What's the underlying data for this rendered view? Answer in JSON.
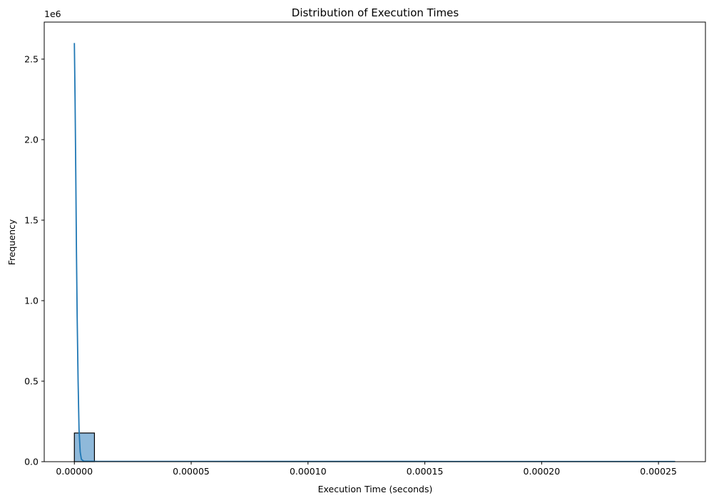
{
  "chart_data": {
    "type": "bar",
    "title": "Distribution of Execution Times",
    "xlabel": "Execution Time (seconds)",
    "ylabel": "Frequency",
    "y_offset_label": "1e6",
    "xlim": [
      -1.29e-05,
      0.0002701
    ],
    "ylim": [
      0,
      2730000
    ],
    "x_ticks": [
      0,
      5e-05,
      0.0001,
      0.00015,
      0.0002,
      0.00025
    ],
    "x_tick_labels": [
      "0.00000",
      "0.00005",
      "0.00010",
      "0.00015",
      "0.00020",
      "0.00025"
    ],
    "y_ticks": [
      0,
      500000,
      1000000,
      1500000,
      2000000,
      2500000
    ],
    "y_tick_labels": [
      "0.0",
      "0.5",
      "1.0",
      "1.5",
      "2.0",
      "2.5"
    ],
    "grid": false,
    "histogram": {
      "bins": [
        {
          "x0": 0.0,
          "x1": 8.6e-06,
          "value": 178000
        },
        {
          "x0": 8.6e-06,
          "x1": 0.0002571,
          "value": 1500
        }
      ],
      "fill_color": "#8fb9da",
      "edge_color": "#000000"
    },
    "kde": {
      "color": "#1f77b4",
      "x": [
        0.0,
        3e-07,
        6e-07,
        9e-07,
        1.2e-06,
        1.6e-06,
        2e-06,
        2.5e-06,
        3e-06,
        4e-06,
        1e-05,
        5e-05,
        0.0001,
        0.00015,
        0.0002,
        0.000257
      ],
      "y": [
        2600000,
        2250000,
        1800000,
        1300000,
        900000,
        500000,
        200000,
        60000,
        15000,
        3000,
        1800,
        1500,
        1400,
        1300,
        1200,
        1000
      ]
    }
  }
}
